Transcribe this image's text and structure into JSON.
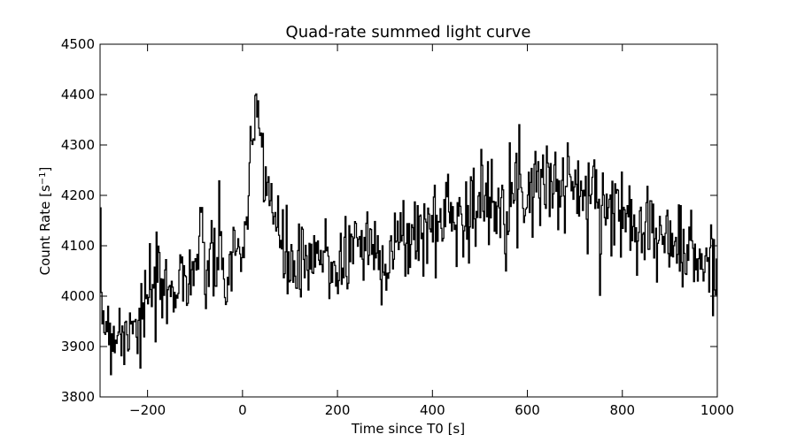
{
  "chart_data": {
    "type": "line",
    "title": "Quad-rate summed light curve",
    "xlabel": "Time since T0 [s]",
    "ylabel_main": "Count Rate [s",
    "ylabel_sup": "−1",
    "ylabel_end": "]",
    "xlim": [
      -300,
      1000
    ],
    "ylim": [
      3800,
      4500
    ],
    "xticks": [
      -200,
      0,
      200,
      400,
      600,
      800,
      1000
    ],
    "xtick_labels": [
      "−200",
      "0",
      "200",
      "400",
      "600",
      "800",
      "1000"
    ],
    "yticks": [
      3800,
      3900,
      4000,
      4100,
      4200,
      4300,
      4400,
      4500
    ],
    "ytick_labels": [
      "3800",
      "3900",
      "4000",
      "4100",
      "4200",
      "4300",
      "4400",
      "4500"
    ],
    "grid": false,
    "series": [
      {
        "color": "#000000",
        "step": 2,
        "x": [
          -300,
          -290,
          -280,
          -270,
          -260,
          -250,
          -240,
          -230,
          -220,
          -210,
          -200,
          -190,
          -180,
          -170,
          -160,
          -150,
          -140,
          -130,
          -120,
          -110,
          -100,
          -90,
          -80,
          -70,
          -60,
          -50,
          -40,
          -30,
          -20,
          -10,
          0,
          10,
          20,
          30,
          40,
          50,
          60,
          70,
          80,
          90,
          100,
          120,
          140,
          160,
          180,
          200,
          220,
          240,
          260,
          280,
          300,
          320,
          340,
          360,
          380,
          400,
          420,
          440,
          460,
          480,
          500,
          520,
          540,
          560,
          580,
          600,
          620,
          640,
          660,
          680,
          700,
          720,
          740,
          760,
          780,
          800,
          820,
          840,
          860,
          880,
          900,
          920,
          940,
          960,
          980,
          1000
        ],
        "y": [
          4000,
          3950,
          3940,
          3920,
          3950,
          3900,
          3960,
          3970,
          3930,
          3960,
          3990,
          4020,
          3990,
          4030,
          3980,
          4040,
          4020,
          4060,
          4010,
          4070,
          4050,
          4100,
          4040,
          4080,
          4060,
          4080,
          4030,
          4050,
          4080,
          4090,
          4100,
          4160,
          4270,
          4380,
          4300,
          4230,
          4200,
          4120,
          4100,
          4080,
          4060,
          4050,
          4050,
          4080,
          4070,
          4060,
          4080,
          4120,
          4100,
          4090,
          4080,
          4100,
          4110,
          4120,
          4130,
          4140,
          4150,
          4180,
          4160,
          4170,
          4180,
          4190,
          4200,
          4210,
          4200,
          4220,
          4230,
          4240,
          4210,
          4220,
          4230,
          4180,
          4200,
          4190,
          4170,
          4160,
          4170,
          4150,
          4140,
          4100,
          4120,
          4090,
          4090,
          4060,
          4060,
          4070
        ],
        "noise_amplitude": 45,
        "seed": 7
      }
    ]
  }
}
